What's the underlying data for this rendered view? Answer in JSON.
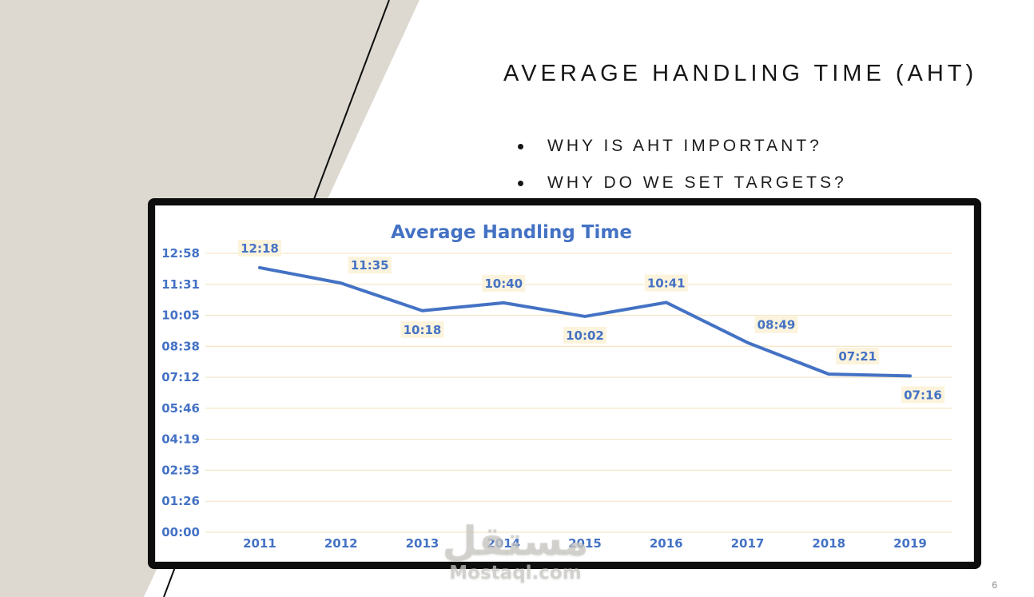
{
  "slide": {
    "title": "AVERAGE HANDLING TIME (AHT)",
    "bullets": [
      "WHY IS AHT IMPORTANT?",
      "WHY DO WE SET TARGETS?"
    ],
    "page_number": "6"
  },
  "watermark": {
    "arabic": "مستقل",
    "latin": "Mostaql.com"
  },
  "chart_data": {
    "type": "line",
    "title": "Average Handling Time",
    "categories": [
      "2011",
      "2012",
      "2013",
      "2014",
      "2015",
      "2016",
      "2017",
      "2018",
      "2019"
    ],
    "labels": [
      "12:18",
      "11:35",
      "10:18",
      "10:40",
      "10:02",
      "10:41",
      "08:49",
      "07:21",
      "07:16"
    ],
    "values_seconds": [
      738,
      695,
      618,
      640,
      602,
      641,
      529,
      441,
      436
    ],
    "label_positions": [
      "above",
      "above-right",
      "below",
      "above",
      "below",
      "above",
      "above-right",
      "above-right",
      "below-right"
    ],
    "y_ticks": [
      "12:58",
      "11:31",
      "10:05",
      "08:38",
      "07:12",
      "05:46",
      "04:19",
      "02:53",
      "01:26",
      "00:00"
    ],
    "y_min_seconds": 0,
    "y_max_seconds": 778,
    "xlabel": "",
    "ylabel": "",
    "grid": "horizontal",
    "legend": "none",
    "colors": {
      "line": "#4472C4",
      "gridline": "#F6E7CB",
      "label_bg": "#FCF3DC",
      "text": "#4472C4"
    }
  }
}
